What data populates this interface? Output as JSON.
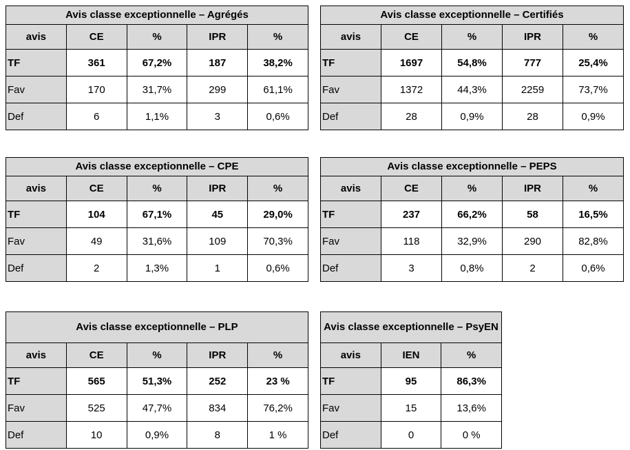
{
  "styles": {
    "page_bg": "#ffffff",
    "shaded_cell_bg": "#d9d9d9",
    "border_color": "#000000",
    "text_color": "#000000"
  },
  "tables": [
    {
      "title": "Avis classe exceptionnelle – Agrégés",
      "columns": [
        "avis",
        "CE",
        "%",
        "IPR",
        "%"
      ],
      "rows": [
        {
          "label": "TF",
          "bold": true,
          "values": [
            "361",
            "67,2%",
            "187",
            "38,2%"
          ]
        },
        {
          "label": "Fav",
          "bold": false,
          "values": [
            "170",
            "31,7%",
            "299",
            "61,1%"
          ]
        },
        {
          "label": "Def",
          "bold": false,
          "values": [
            "6",
            "1,1%",
            "3",
            "0,6%"
          ]
        }
      ]
    },
    {
      "title": "Avis classe exceptionnelle – Certifiés",
      "columns": [
        "avis",
        "CE",
        "%",
        "IPR",
        "%"
      ],
      "rows": [
        {
          "label": "TF",
          "bold": true,
          "values": [
            "1697",
            "54,8%",
            "777",
            "25,4%"
          ]
        },
        {
          "label": "Fav",
          "bold": false,
          "values": [
            "1372",
            "44,3%",
            "2259",
            "73,7%"
          ]
        },
        {
          "label": "Def",
          "bold": false,
          "values": [
            "28",
            "0,9%",
            "28",
            "0,9%"
          ]
        }
      ]
    },
    {
      "title": "Avis classe exceptionnelle – CPE",
      "columns": [
        "avis",
        "CE",
        "%",
        "IPR",
        "%"
      ],
      "rows": [
        {
          "label": "TF",
          "bold": true,
          "values": [
            "104",
            "67,1%",
            "45",
            "29,0%"
          ]
        },
        {
          "label": "Fav",
          "bold": false,
          "values": [
            "49",
            "31,6%",
            "109",
            "70,3%"
          ]
        },
        {
          "label": "Def",
          "bold": false,
          "values": [
            "2",
            "1,3%",
            "1",
            "0,6%"
          ]
        }
      ]
    },
    {
      "title": "Avis classe exceptionnelle – PEPS",
      "columns": [
        "avis",
        "CE",
        "%",
        "IPR",
        "%"
      ],
      "rows": [
        {
          "label": "TF",
          "bold": true,
          "values": [
            "237",
            "66,2%",
            "58",
            "16,5%"
          ]
        },
        {
          "label": "Fav",
          "bold": false,
          "values": [
            "118",
            "32,9%",
            "290",
            "82,8%"
          ]
        },
        {
          "label": "Def",
          "bold": false,
          "values": [
            "3",
            "0,8%",
            "2",
            "0,6%"
          ]
        }
      ]
    },
    {
      "title": "Avis classe exceptionnelle – PLP",
      "columns": [
        "avis",
        "CE",
        "%",
        "IPR",
        "%"
      ],
      "rows": [
        {
          "label": "TF",
          "bold": true,
          "values": [
            "565",
            "51,3%",
            "252",
            "23 %"
          ]
        },
        {
          "label": "Fav",
          "bold": false,
          "values": [
            "525",
            "47,7%",
            "834",
            "76,2%"
          ]
        },
        {
          "label": "Def",
          "bold": false,
          "values": [
            "10",
            "0,9%",
            "8",
            "1 %"
          ]
        }
      ]
    },
    {
      "title": "Avis classe exceptionnelle – PsyEN",
      "columns": [
        "avis",
        "IEN",
        "%"
      ],
      "rows": [
        {
          "label": "TF",
          "bold": true,
          "values": [
            "95",
            "86,3%"
          ]
        },
        {
          "label": "Fav",
          "bold": false,
          "values": [
            "15",
            "13,6%"
          ]
        },
        {
          "label": "Def",
          "bold": false,
          "values": [
            "0",
            "0 %"
          ]
        }
      ]
    }
  ]
}
